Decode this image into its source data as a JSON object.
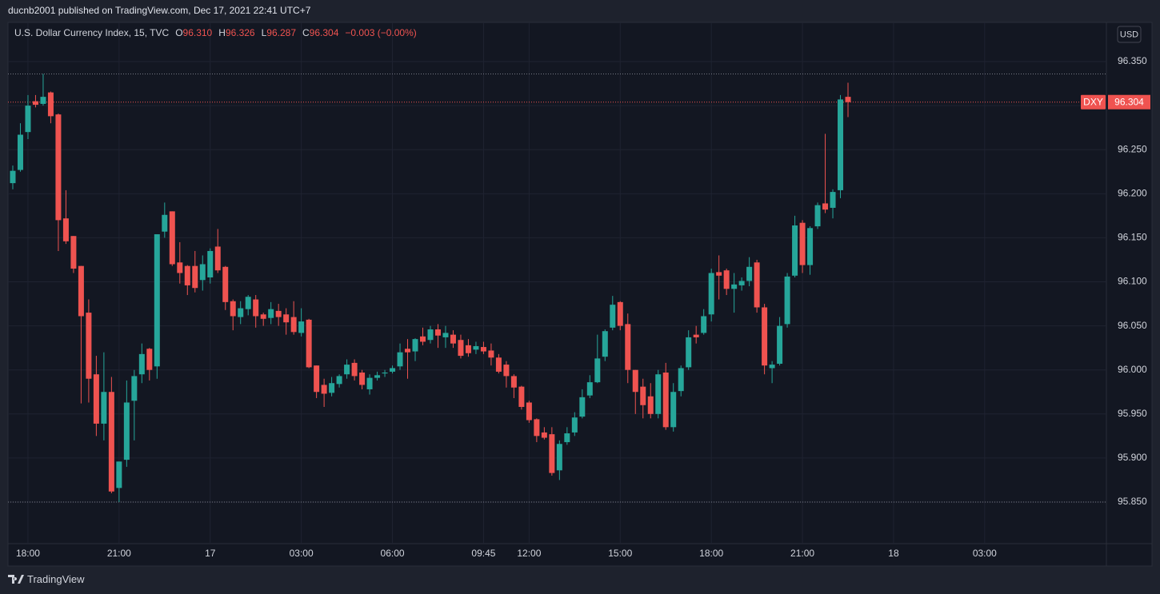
{
  "header": {
    "publisher": "ducnb2001 published on TradingView.com, Dec 17, 2021 22:41 UTC+7"
  },
  "footer": {
    "brand": "TradingView"
  },
  "chart_data": {
    "type": "candlestick",
    "title": "U.S. Dollar Currency Index, 15, TVC",
    "legend": {
      "o": "O",
      "open": "96.310",
      "h": "H",
      "high": "96.326",
      "l": "L",
      "low": "96.287",
      "c": "C",
      "close": "96.304",
      "change": "−0.003 (−0.00%)"
    },
    "symbol": "DXY",
    "last_price_label": "96.304",
    "currency": "USD",
    "up_color": "#26a69a",
    "down_color": "#ef5350",
    "grid": true,
    "high_line": 96.336,
    "low_line": 95.85,
    "xlim": [
      -0.63,
      144.03
    ],
    "xticks": [
      {
        "value": 2,
        "label": "18:00"
      },
      {
        "value": 14,
        "label": "21:00"
      },
      {
        "value": 26,
        "label": "17"
      },
      {
        "value": 38,
        "label": "03:00"
      },
      {
        "value": 50,
        "label": "06:00"
      },
      {
        "value": 62,
        "label": "09:45"
      },
      {
        "value": 68,
        "label": "12:00"
      },
      {
        "value": 80,
        "label": "15:00"
      },
      {
        "value": 92,
        "label": "18:00"
      },
      {
        "value": 104,
        "label": "21:00"
      },
      {
        "value": 116,
        "label": "18"
      },
      {
        "value": 128,
        "label": "03:00"
      }
    ],
    "ylim": [
      95.8028,
      96.3945
    ],
    "yticks": [
      {
        "value": 95.85,
        "label": "95.850"
      },
      {
        "value": 95.9,
        "label": "95.900"
      },
      {
        "value": 95.95,
        "label": "95.950"
      },
      {
        "value": 96.0,
        "label": "96.000"
      },
      {
        "value": 96.05,
        "label": "96.050"
      },
      {
        "value": 96.1,
        "label": "96.100"
      },
      {
        "value": 96.15,
        "label": "96.150"
      },
      {
        "value": 96.2,
        "label": "96.200"
      },
      {
        "value": 96.25,
        "label": "96.250"
      },
      {
        "value": 96.3,
        "label": "96.300"
      },
      {
        "value": 96.35,
        "label": "96.350"
      }
    ],
    "open": [
      96.212,
      96.227,
      96.27,
      96.305,
      96.302,
      96.315,
      96.29,
      96.172,
      96.152,
      96.118,
      96.065,
      95.995,
      95.939,
      95.975,
      95.866,
      95.898,
      95.965,
      95.995,
      96.024,
      96.004,
      96.157,
      96.18,
      96.122,
      96.118,
      96.118,
      96.102,
      96.105,
      96.14,
      96.117,
      96.078,
      96.06,
      96.069,
      96.08,
      96.063,
      96.059,
      96.067,
      96.063,
      96.06,
      96.042,
      96.057,
      96.005,
      95.983,
      95.974,
      95.984,
      95.995,
      96.008,
      95.997,
      95.978,
      95.991,
      95.996,
      95.998,
      96.004,
      96.024,
      96.021,
      96.038,
      96.034,
      96.046,
      96.037,
      96.04,
      96.034,
      96.028,
      96.023,
      96.026,
      96.022,
      96.014,
      96.006,
      95.993,
      95.981,
      95.963,
      95.944,
      95.929,
      95.927,
      95.886,
      95.918,
      95.929,
      95.947,
      95.971,
      95.986,
      96.015,
      96.048,
      96.077,
      96.052,
      96.0,
      95.981,
      95.97,
      95.95,
      95.997,
      95.935,
      95.976,
      96.003,
      96.04,
      96.042,
      96.063,
      96.111,
      96.113,
      96.092,
      96.096,
      96.101,
      96.122,
      96.071,
      96.002,
      96.007,
      96.052,
      96.107,
      96.167,
      96.119,
      96.163,
      96.189,
      96.184,
      96.204,
      96.31
    ],
    "high": [
      96.232,
      96.28,
      96.312,
      96.312,
      96.336,
      96.316,
      96.291,
      96.204,
      96.152,
      96.118,
      96.08,
      96.016,
      96.02,
      95.992,
      95.896,
      95.988,
      96.0,
      96.03,
      96.025,
      96.154,
      96.19,
      96.18,
      96.145,
      96.119,
      96.135,
      96.13,
      96.138,
      96.16,
      96.118,
      96.08,
      96.078,
      96.085,
      96.085,
      96.065,
      96.077,
      96.075,
      96.07,
      96.078,
      96.07,
      96.058,
      96.005,
      95.99,
      95.992,
      95.995,
      96.012,
      96.012,
      96.0,
      95.995,
      95.998,
      96.0,
      96.005,
      96.03,
      96.035,
      96.036,
      96.048,
      96.05,
      96.052,
      96.05,
      96.045,
      96.04,
      96.035,
      96.032,
      96.032,
      96.03,
      96.018,
      96.01,
      95.995,
      95.982,
      95.965,
      95.945,
      95.935,
      95.935,
      95.92,
      95.935,
      95.952,
      95.978,
      95.994,
      96.04,
      96.046,
      96.084,
      96.078,
      96.064,
      96.0,
      95.99,
      95.985,
      96.0,
      96.008,
      95.985,
      96.005,
      96.045,
      96.05,
      96.069,
      96.115,
      96.13,
      96.115,
      96.11,
      96.105,
      96.128,
      96.125,
      96.075,
      96.01,
      96.06,
      96.11,
      96.175,
      96.17,
      96.163,
      96.19,
      96.268,
      96.205,
      96.312,
      96.326
    ],
    "low": [
      96.205,
      96.225,
      96.262,
      96.298,
      96.3,
      96.28,
      96.135,
      96.143,
      96.11,
      95.962,
      95.963,
      95.925,
      95.92,
      95.86,
      95.85,
      95.89,
      95.92,
      95.985,
      95.988,
      95.99,
      96.15,
      96.118,
      96.098,
      96.085,
      96.088,
      96.09,
      96.098,
      96.11,
      96.068,
      96.045,
      96.052,
      96.062,
      96.048,
      96.05,
      96.052,
      96.05,
      96.04,
      96.04,
      96.038,
      96.002,
      95.968,
      95.958,
      95.97,
      95.98,
      95.99,
      95.988,
      95.978,
      95.972,
      95.988,
      95.992,
      95.996,
      96.0,
      95.99,
      96.01,
      96.028,
      96.03,
      96.025,
      96.025,
      96.025,
      96.013,
      96.015,
      96.018,
      96.018,
      96.005,
      95.996,
      95.98,
      95.968,
      95.955,
      95.94,
      95.918,
      95.921,
      95.88,
      95.875,
      95.915,
      95.925,
      95.945,
      95.968,
      95.985,
      96.01,
      96.045,
      96.045,
      95.985,
      95.95,
      95.945,
      95.945,
      95.945,
      95.932,
      95.93,
      95.97,
      96.0,
      96.03,
      96.04,
      96.055,
      96.08,
      96.085,
      96.065,
      96.09,
      96.095,
      96.065,
      95.995,
      95.985,
      96.005,
      96.048,
      96.105,
      96.11,
      96.108,
      96.16,
      96.178,
      96.172,
      96.195,
      96.287
    ],
    "close": [
      96.226,
      96.267,
      96.3,
      96.301,
      96.31,
      96.288,
      96.17,
      96.146,
      96.115,
      96.061,
      95.99,
      95.939,
      95.975,
      95.862,
      95.896,
      95.963,
      95.993,
      96.018,
      96.0,
      96.154,
      96.176,
      96.12,
      96.11,
      96.096,
      96.093,
      96.12,
      96.135,
      96.113,
      96.077,
      96.061,
      96.07,
      96.083,
      96.061,
      96.058,
      96.069,
      96.06,
      96.054,
      96.043,
      96.055,
      96.003,
      95.975,
      95.973,
      95.985,
      95.993,
      96.006,
      95.993,
      95.983,
      95.991,
      95.994,
      95.997,
      96.002,
      96.02,
      96.02,
      96.035,
      96.032,
      96.046,
      96.039,
      96.042,
      96.03,
      96.016,
      96.019,
      96.027,
      96.021,
      96.014,
      95.998,
      95.993,
      95.98,
      95.958,
      95.943,
      95.925,
      95.923,
      95.883,
      95.916,
      95.928,
      95.946,
      95.969,
      95.986,
      96.013,
      96.044,
      96.074,
      96.05,
      96.0,
      95.975,
      95.96,
      95.95,
      95.995,
      95.935,
      95.975,
      96.002,
      96.037,
      96.037,
      96.061,
      96.11,
      96.107,
      96.092,
      96.097,
      96.101,
      96.117,
      96.071,
      96.005,
      96.006,
      96.05,
      96.106,
      96.164,
      96.119,
      96.161,
      96.187,
      96.182,
      96.202,
      96.307,
      96.304
    ]
  }
}
